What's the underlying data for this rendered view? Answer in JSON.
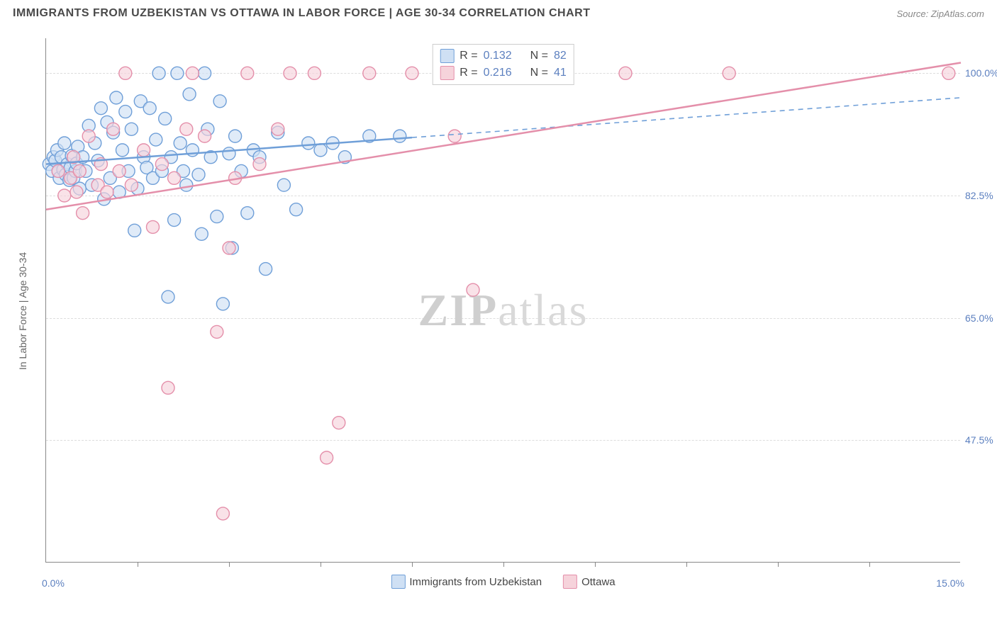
{
  "title": "IMMIGRANTS FROM UZBEKISTAN VS OTTAWA IN LABOR FORCE | AGE 30-34 CORRELATION CHART",
  "source": "Source: ZipAtlas.com",
  "watermark_a": "ZIP",
  "watermark_b": "atlas",
  "y_axis_label": "In Labor Force | Age 30-34",
  "chart": {
    "type": "scatter",
    "xlim": [
      0.0,
      15.0
    ],
    "ylim": [
      30.0,
      105.0
    ],
    "yticks": [
      47.5,
      65.0,
      82.5,
      100.0
    ],
    "ytick_labels": [
      "47.5%",
      "65.0%",
      "82.5%",
      "100.0%"
    ],
    "xtick_positions": [
      1.5,
      3.0,
      4.5,
      6.0,
      7.5,
      9.0,
      10.5,
      12.0,
      13.5
    ],
    "xlim_labels": {
      "min": "0.0%",
      "max": "15.0%"
    },
    "grid_color": "#dddddd",
    "axis_color": "#888888",
    "background_color": "#ffffff",
    "marker_radius": 9,
    "marker_stroke_width": 1.4,
    "line_width": 2.5,
    "series": [
      {
        "name": "Immigrants from Uzbekistan",
        "fill": "#cfe0f4",
        "stroke": "#6f9fd8",
        "r_label": "R =",
        "r_value": "0.132",
        "n_label": "N =",
        "n_value": "82",
        "trend": {
          "solid_end_x": 6.0,
          "y_at_xmin": 87.0,
          "y_at_xmax": 96.5
        },
        "points": [
          [
            0.05,
            87.0
          ],
          [
            0.1,
            86.0
          ],
          [
            0.12,
            88.0
          ],
          [
            0.15,
            87.5
          ],
          [
            0.2,
            86.0
          ],
          [
            0.18,
            89.0
          ],
          [
            0.22,
            85.0
          ],
          [
            0.25,
            88.0
          ],
          [
            0.28,
            86.2
          ],
          [
            0.3,
            90.0
          ],
          [
            0.32,
            85.5
          ],
          [
            0.35,
            87.0
          ],
          [
            0.38,
            84.7
          ],
          [
            0.4,
            86.5
          ],
          [
            0.42,
            88.2
          ],
          [
            0.45,
            85.0
          ],
          [
            0.48,
            86.0
          ],
          [
            0.5,
            87.1
          ],
          [
            0.52,
            89.5
          ],
          [
            0.55,
            83.5
          ],
          [
            0.6,
            88.0
          ],
          [
            0.65,
            86.0
          ],
          [
            0.7,
            92.5
          ],
          [
            0.75,
            84.0
          ],
          [
            0.8,
            90.0
          ],
          [
            0.85,
            87.5
          ],
          [
            0.9,
            95.0
          ],
          [
            0.95,
            82.0
          ],
          [
            1.0,
            93.0
          ],
          [
            1.05,
            85.0
          ],
          [
            1.1,
            91.5
          ],
          [
            1.15,
            96.5
          ],
          [
            1.2,
            83.0
          ],
          [
            1.25,
            89.0
          ],
          [
            1.3,
            94.5
          ],
          [
            1.35,
            86.0
          ],
          [
            1.4,
            92.0
          ],
          [
            1.45,
            77.5
          ],
          [
            1.5,
            83.5
          ],
          [
            1.55,
            96.0
          ],
          [
            1.6,
            88.0
          ],
          [
            1.65,
            86.5
          ],
          [
            1.7,
            95.0
          ],
          [
            1.75,
            85.0
          ],
          [
            1.8,
            90.5
          ],
          [
            1.85,
            100.0
          ],
          [
            1.9,
            86.0
          ],
          [
            1.95,
            93.5
          ],
          [
            2.0,
            68.0
          ],
          [
            2.05,
            88.0
          ],
          [
            2.1,
            79.0
          ],
          [
            2.15,
            100.0
          ],
          [
            2.2,
            90.0
          ],
          [
            2.25,
            86.0
          ],
          [
            2.3,
            84.0
          ],
          [
            2.35,
            97.0
          ],
          [
            2.4,
            89.0
          ],
          [
            2.5,
            85.5
          ],
          [
            2.55,
            77.0
          ],
          [
            2.6,
            100.0
          ],
          [
            2.65,
            92.0
          ],
          [
            2.7,
            88.0
          ],
          [
            2.8,
            79.5
          ],
          [
            2.85,
            96.0
          ],
          [
            2.9,
            67.0
          ],
          [
            3.0,
            88.5
          ],
          [
            3.05,
            75.0
          ],
          [
            3.1,
            91.0
          ],
          [
            3.2,
            86.0
          ],
          [
            3.3,
            80.0
          ],
          [
            3.4,
            89.0
          ],
          [
            3.5,
            88.0
          ],
          [
            3.6,
            72.0
          ],
          [
            3.8,
            91.5
          ],
          [
            3.9,
            84.0
          ],
          [
            4.1,
            80.5
          ],
          [
            4.3,
            90.0
          ],
          [
            4.5,
            89.0
          ],
          [
            4.7,
            90.0
          ],
          [
            4.9,
            88.0
          ],
          [
            5.3,
            91.0
          ],
          [
            5.8,
            91.0
          ]
        ]
      },
      {
        "name": "Ottawa",
        "fill": "#f6d3db",
        "stroke": "#e48faa",
        "r_label": "R =",
        "r_value": "0.216",
        "n_label": "N =",
        "n_value": "41",
        "trend": {
          "solid_end_x": 15.0,
          "y_at_xmin": 80.5,
          "y_at_xmax": 101.5
        },
        "points": [
          [
            0.2,
            86.0
          ],
          [
            0.3,
            82.5
          ],
          [
            0.4,
            85.0
          ],
          [
            0.45,
            88.0
          ],
          [
            0.5,
            83.0
          ],
          [
            0.55,
            86.0
          ],
          [
            0.6,
            80.0
          ],
          [
            0.7,
            91.0
          ],
          [
            0.85,
            84.0
          ],
          [
            0.9,
            87.0
          ],
          [
            1.0,
            83.0
          ],
          [
            1.1,
            92.0
          ],
          [
            1.2,
            86.0
          ],
          [
            1.3,
            100.0
          ],
          [
            1.4,
            84.0
          ],
          [
            1.6,
            89.0
          ],
          [
            1.75,
            78.0
          ],
          [
            1.9,
            87.0
          ],
          [
            2.0,
            55.0
          ],
          [
            2.1,
            85.0
          ],
          [
            2.3,
            92.0
          ],
          [
            2.4,
            100.0
          ],
          [
            2.6,
            91.0
          ],
          [
            2.8,
            63.0
          ],
          [
            2.9,
            37.0
          ],
          [
            3.0,
            75.0
          ],
          [
            3.1,
            85.0
          ],
          [
            3.3,
            100.0
          ],
          [
            3.5,
            87.0
          ],
          [
            3.8,
            92.0
          ],
          [
            4.0,
            100.0
          ],
          [
            4.4,
            100.0
          ],
          [
            4.6,
            45.0
          ],
          [
            4.8,
            50.0
          ],
          [
            5.3,
            100.0
          ],
          [
            6.0,
            100.0
          ],
          [
            6.7,
            91.0
          ],
          [
            7.0,
            69.0
          ],
          [
            9.5,
            100.0
          ],
          [
            11.2,
            100.0
          ],
          [
            14.8,
            100.0
          ]
        ]
      }
    ]
  }
}
